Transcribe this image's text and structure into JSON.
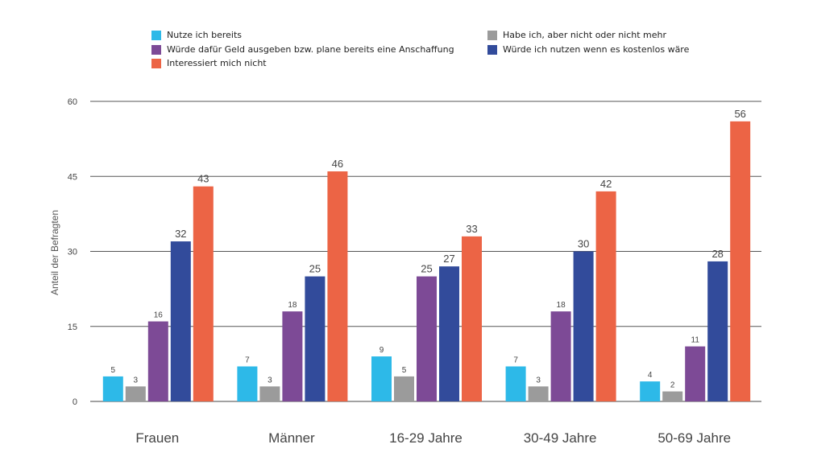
{
  "chart_data": {
    "type": "bar",
    "ylabel": "Anteil der Befragten",
    "ylim": [
      0,
      60
    ],
    "yticks": [
      0,
      15,
      30,
      45,
      60
    ],
    "grid": true,
    "legend_position": "top",
    "categories": [
      "Frauen",
      "Männer",
      "16-29 Jahre",
      "30-49 Jahre",
      "50-69 Jahre"
    ],
    "series": [
      {
        "name": "Nutze ich bereits",
        "color": "#2db9e8",
        "values": [
          5,
          7,
          9,
          7,
          4
        ]
      },
      {
        "name": "Habe ich, aber nicht oder nicht mehr",
        "color": "#9b9b9b",
        "values": [
          3,
          3,
          5,
          3,
          2
        ]
      },
      {
        "name": "Würde dafür Geld ausgeben bzw. plane bereits eine Anschaffung",
        "color": "#7d4a96",
        "values": [
          16,
          18,
          25,
          18,
          11
        ]
      },
      {
        "name": "Würde ich nutzen wenn es kostenlos wäre",
        "color": "#324b9b",
        "values": [
          32,
          25,
          27,
          30,
          28
        ]
      },
      {
        "name": "Interessiert mich nicht",
        "color": "#ec6445",
        "values": [
          43,
          46,
          33,
          42,
          56
        ]
      }
    ]
  }
}
